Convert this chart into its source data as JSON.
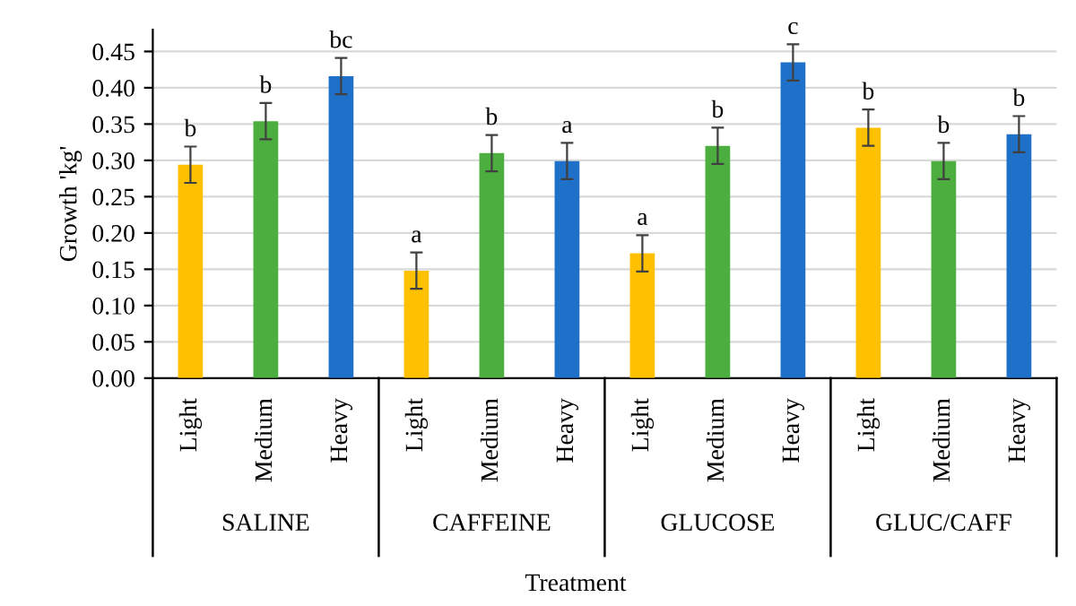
{
  "chart_data": {
    "type": "bar",
    "ylabel": "Growth 'kg'",
    "xlabel": "Treatment",
    "categories": [
      "Light",
      "Medium",
      "Heavy",
      "Light",
      "Medium",
      "Heavy",
      "Light",
      "Medium",
      "Heavy",
      "Light",
      "Medium",
      "Heavy"
    ],
    "values": [
      0.294,
      0.354,
      0.416,
      0.148,
      0.31,
      0.299,
      0.172,
      0.32,
      0.435,
      0.345,
      0.299,
      0.336
    ],
    "errors": [
      0.025,
      0.025,
      0.025,
      0.025,
      0.025,
      0.025,
      0.025,
      0.025,
      0.025,
      0.025,
      0.025,
      0.025
    ],
    "value_labels": [
      "b",
      "b",
      "bc",
      "a",
      "b",
      "a",
      "a",
      "b",
      "c",
      "b",
      "b",
      "b"
    ],
    "colors": [
      "#ffc000",
      "#4cae3f",
      "#1f70c8",
      "#ffc000",
      "#4cae3f",
      "#1f70c8",
      "#ffc000",
      "#4cae3f",
      "#1f70c8",
      "#ffc000",
      "#4cae3f",
      "#1f70c8"
    ],
    "annotations": [
      "SALINE",
      "CAFFEINE",
      "GLUCOSE",
      "GLUC/CAFF"
    ],
    "ylim": [
      0,
      0.48
    ],
    "yticks": [
      {
        "value": 0,
        "label": "0.00"
      },
      {
        "value": 0.05,
        "label": "0.05"
      },
      {
        "value": 0.1,
        "label": "0.10"
      },
      {
        "value": 0.15,
        "label": "0.15"
      },
      {
        "value": 0.2,
        "label": "0.20"
      },
      {
        "value": 0.25,
        "label": "0.25"
      },
      {
        "value": 0.3,
        "label": "0.30"
      },
      {
        "value": 0.35,
        "label": "0.35"
      },
      {
        "value": 0.4,
        "label": "0.40"
      },
      {
        "value": 0.45,
        "label": "0.45"
      }
    ],
    "grid": "y"
  }
}
